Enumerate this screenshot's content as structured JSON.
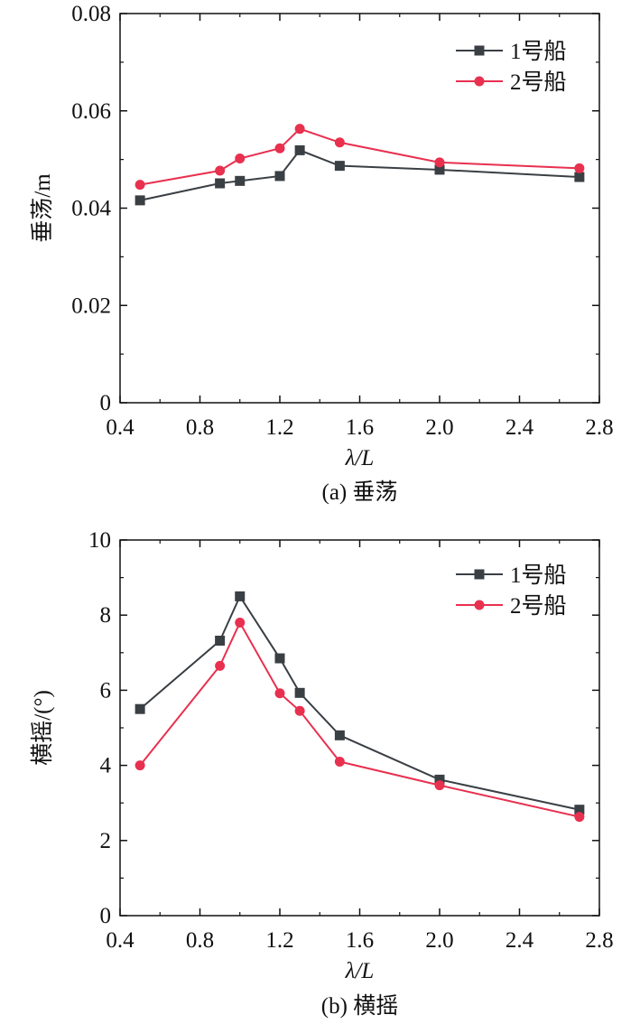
{
  "colors": {
    "ship1": "#3a3f44",
    "ship2": "#e8304f",
    "axis": "#111111"
  },
  "chart_data": [
    {
      "type": "line",
      "caption": "(a) 垂荡",
      "xlabel": "λ/L",
      "ylabel": "垂荡/m",
      "xlim": [
        0.4,
        2.8
      ],
      "ylim": [
        0,
        0.08
      ],
      "xticks": [
        "0.4",
        "0.8",
        "1.2",
        "1.6",
        "2.0",
        "2.4",
        "2.8"
      ],
      "yticks": [
        "0",
        "0.02",
        "0.04",
        "0.06",
        "0.08"
      ],
      "xtick_values": [
        0.4,
        0.8,
        1.2,
        1.6,
        2.0,
        2.4,
        2.8
      ],
      "ytick_values": [
        0,
        0.02,
        0.04,
        0.06,
        0.08
      ],
      "legend_position": "top-right",
      "grid": false,
      "x": [
        0.5,
        0.9,
        1.0,
        1.2,
        1.3,
        1.5,
        2.0,
        2.7
      ],
      "series": [
        {
          "name": "1号船",
          "marker": "square",
          "color_key": "ship1",
          "values": [
            0.0416,
            0.0451,
            0.0456,
            0.0466,
            0.0519,
            0.0487,
            0.0479,
            0.0464
          ]
        },
        {
          "name": "2号船",
          "marker": "circle",
          "color_key": "ship2",
          "values": [
            0.0448,
            0.0477,
            0.0502,
            0.0523,
            0.0563,
            0.0535,
            0.0494,
            0.0482
          ]
        }
      ]
    },
    {
      "type": "line",
      "caption": "(b) 横摇",
      "xlabel": "λ/L",
      "ylabel": "横摇/(°)",
      "xlim": [
        0.4,
        2.8
      ],
      "ylim": [
        0,
        10
      ],
      "xticks": [
        "0.4",
        "0.8",
        "1.2",
        "1.6",
        "2.0",
        "2.4",
        "2.8"
      ],
      "yticks": [
        "0",
        "2",
        "4",
        "6",
        "8",
        "10"
      ],
      "xtick_values": [
        0.4,
        0.8,
        1.2,
        1.6,
        2.0,
        2.4,
        2.8
      ],
      "ytick_values": [
        0,
        2,
        4,
        6,
        8,
        10
      ],
      "legend_position": "top-right",
      "grid": false,
      "x": [
        0.5,
        0.9,
        1.0,
        1.2,
        1.3,
        1.5,
        2.0,
        2.7
      ],
      "series": [
        {
          "name": "1号船",
          "marker": "square",
          "color_key": "ship1",
          "values": [
            5.5,
            7.32,
            8.5,
            6.85,
            5.93,
            4.8,
            3.62,
            2.82
          ]
        },
        {
          "name": "2号船",
          "marker": "circle",
          "color_key": "ship2",
          "values": [
            4.0,
            6.65,
            7.8,
            5.92,
            5.45,
            4.1,
            3.47,
            2.63
          ]
        }
      ]
    }
  ]
}
